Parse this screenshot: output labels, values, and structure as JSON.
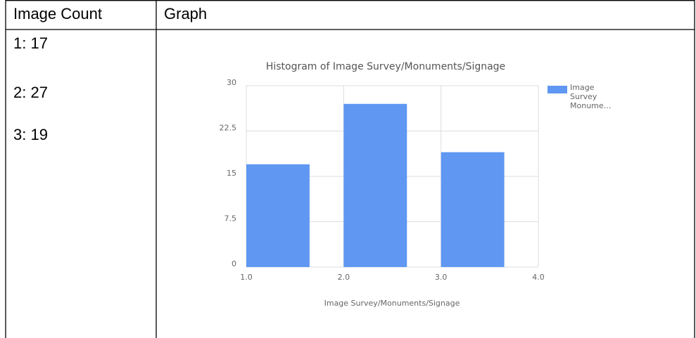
{
  "table": {
    "headers": [
      "Image Count",
      "Graph"
    ],
    "counts": [
      "1: 17",
      "2: 27",
      "3: 19"
    ]
  },
  "chart_data": {
    "type": "histogram",
    "title": "Histogram of Image Survey/Monuments/Signage",
    "x_label": "Image Survey/Monuments/Signage",
    "bins": [
      1,
      2,
      3,
      4
    ],
    "values": [
      17,
      27,
      19
    ],
    "series": [
      {
        "name": "Image Survey Monume…",
        "color": "#5f97f2"
      }
    ],
    "xlim": [
      1,
      4
    ],
    "xticks": [
      {
        "value": 1,
        "label": "1.0"
      },
      {
        "value": 2,
        "label": "2.0"
      },
      {
        "value": 3,
        "label": "3.0"
      },
      {
        "value": 4,
        "label": "4.0"
      }
    ],
    "ylim": [
      0,
      30
    ],
    "yticks": [
      0,
      7.5,
      15,
      22.5,
      30
    ],
    "grid": true,
    "legend": "right"
  }
}
